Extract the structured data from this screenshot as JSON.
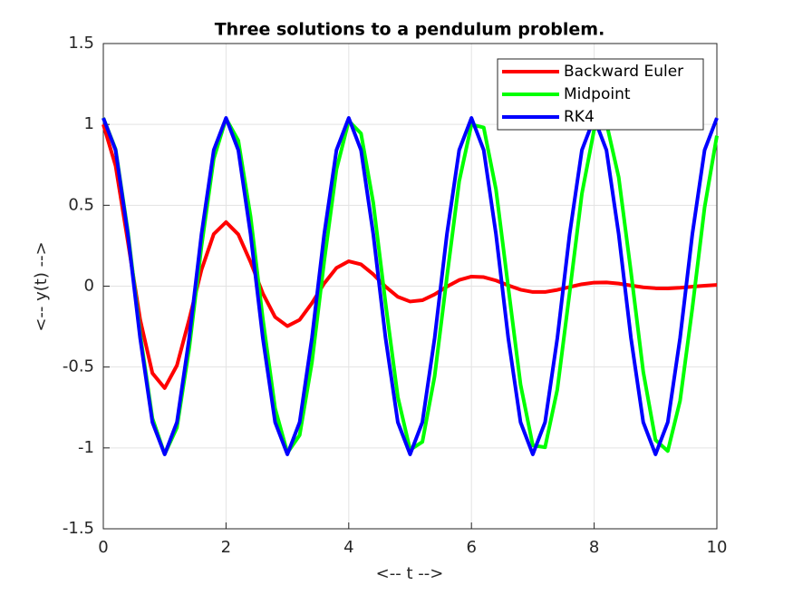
{
  "chart_data": {
    "type": "line",
    "title": "Three solutions to a pendulum problem.",
    "x_label": "<-- t -->",
    "y_label": "<-- y(t) -->",
    "x": [
      0,
      0.2,
      0.4,
      0.6,
      0.8,
      1,
      1.2,
      1.4,
      1.6,
      1.8,
      2,
      2.2,
      2.4,
      2.6,
      2.8,
      3,
      3.2,
      3.4,
      3.6,
      3.8,
      4,
      4.2,
      4.4,
      4.6,
      4.8,
      5,
      5.2,
      5.4,
      5.6,
      5.8,
      6,
      6.2,
      6.4,
      6.6,
      6.8,
      7,
      7.2,
      7.4,
      7.6,
      7.8,
      8,
      8.2,
      8.4,
      8.6,
      8.8,
      9,
      9.2,
      9.4,
      9.6,
      9.8,
      10
    ],
    "series": [
      {
        "name": "Backward Euler",
        "color": "#ff0000",
        "values": [
          1,
          0.744,
          0.276,
          -0.206,
          -0.538,
          -0.63,
          -0.49,
          -0.205,
          0.101,
          0.322,
          0.396,
          0.32,
          0.149,
          -0.045,
          -0.191,
          -0.247,
          -0.208,
          -0.105,
          0.017,
          0.113,
          0.154,
          0.135,
          0.073,
          -0.003,
          -0.066,
          -0.095,
          -0.087,
          -0.051,
          -0.003,
          0.038,
          0.059,
          0.056,
          0.035,
          0.005,
          -0.022,
          -0.036,
          -0.036,
          -0.023,
          -0.005,
          0.012,
          0.022,
          0.023,
          0.016,
          0.004,
          -0.007,
          -0.013,
          -0.014,
          -0.01,
          -0.003,
          0.003,
          0.008
        ]
      },
      {
        "name": "Midpoint",
        "color": "#00ff00",
        "values": [
          1.04,
          0.847,
          0.34,
          -0.294,
          -0.817,
          -1.039,
          -0.874,
          -0.384,
          0.246,
          0.788,
          1.036,
          0.9,
          0.431,
          -0.202,
          -0.756,
          -1.03,
          -0.921,
          -0.472,
          0.154,
          0.722,
          1.022,
          0.944,
          0.515,
          -0.105,
          -0.685,
          -1.012,
          -0.963,
          -0.557,
          0.056,
          0.648,
          0.999,
          0.981,
          0.598,
          -0.007,
          -0.608,
          -0.985,
          -0.996,
          -0.638,
          -0.04,
          0.571,
          0.969,
          1.008,
          0.673,
          0.088,
          -0.529,
          -0.951,
          -1.019,
          -0.709,
          -0.137,
          0.487,
          0.93
        ]
      },
      {
        "name": "RK4",
        "color": "#0000ff",
        "values": [
          1.04,
          0.841,
          0.321,
          -0.321,
          -0.841,
          -1.04,
          -0.841,
          -0.321,
          0.321,
          0.841,
          1.04,
          0.841,
          0.321,
          -0.321,
          -0.841,
          -1.04,
          -0.841,
          -0.321,
          0.321,
          0.841,
          1.04,
          0.841,
          0.321,
          -0.321,
          -0.841,
          -1.04,
          -0.841,
          -0.321,
          0.321,
          0.841,
          1.04,
          0.841,
          0.321,
          -0.321,
          -0.841,
          -1.04,
          -0.841,
          -0.321,
          0.321,
          0.841,
          1.04,
          0.841,
          0.321,
          -0.321,
          -0.841,
          -1.04,
          -0.841,
          -0.321,
          0.321,
          0.841,
          1.04
        ]
      }
    ],
    "xlim": [
      0,
      10
    ],
    "xticks": [
      0,
      2,
      4,
      6,
      8,
      10
    ],
    "ylim": [
      -1.5,
      1.5
    ],
    "yticks": [
      -1.5,
      -1,
      -0.5,
      0,
      0.5,
      1,
      1.5
    ],
    "grid": true,
    "legend_position": "upper-right"
  }
}
